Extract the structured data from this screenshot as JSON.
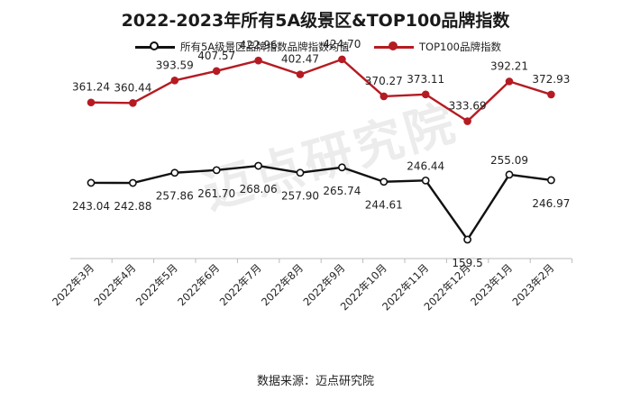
{
  "chart_data": {
    "type": "line",
    "title": "2022-2023年所有5A级景区&TOP100品牌指数",
    "categories": [
      "2022年3月",
      "2022年4月",
      "2022年5月",
      "2022年6月",
      "2022年7月",
      "2022年8月",
      "2022年9月",
      "2022年10月",
      "2022年11月",
      "2022年12月",
      "2023年1月",
      "2023年2月"
    ],
    "series": [
      {
        "name": "所有5A级景区品牌指数品牌指数均值",
        "color": "#111111",
        "values": [
          243.04,
          242.88,
          257.86,
          261.7,
          268.06,
          257.9,
          265.74,
          244.61,
          246.44,
          159.5,
          255.09,
          246.97
        ],
        "labels": [
          "243.04",
          "242.88",
          "257.86",
          "261.70",
          "268.06",
          "257.90",
          "265.74",
          "244.61",
          "246.44",
          "159.5",
          "255.09",
          "246.97"
        ]
      },
      {
        "name": "TOP100品牌指数",
        "color": "#b51b22",
        "values": [
          361.24,
          360.44,
          393.59,
          407.57,
          422.96,
          402.47,
          424.7,
          370.27,
          373.11,
          333.69,
          392.21,
          372.93
        ],
        "labels": [
          "361.24",
          "360.44",
          "393.59",
          "407.57",
          "422.96",
          "402.47",
          "424.70",
          "370.27",
          "373.11",
          "333.69",
          "392.21",
          "372.93"
        ]
      }
    ],
    "xlabel": "",
    "ylabel": "",
    "legend_position": "top",
    "grid": false
  },
  "source": "数据来源：迈点研究院",
  "watermark": "迈点研究院"
}
